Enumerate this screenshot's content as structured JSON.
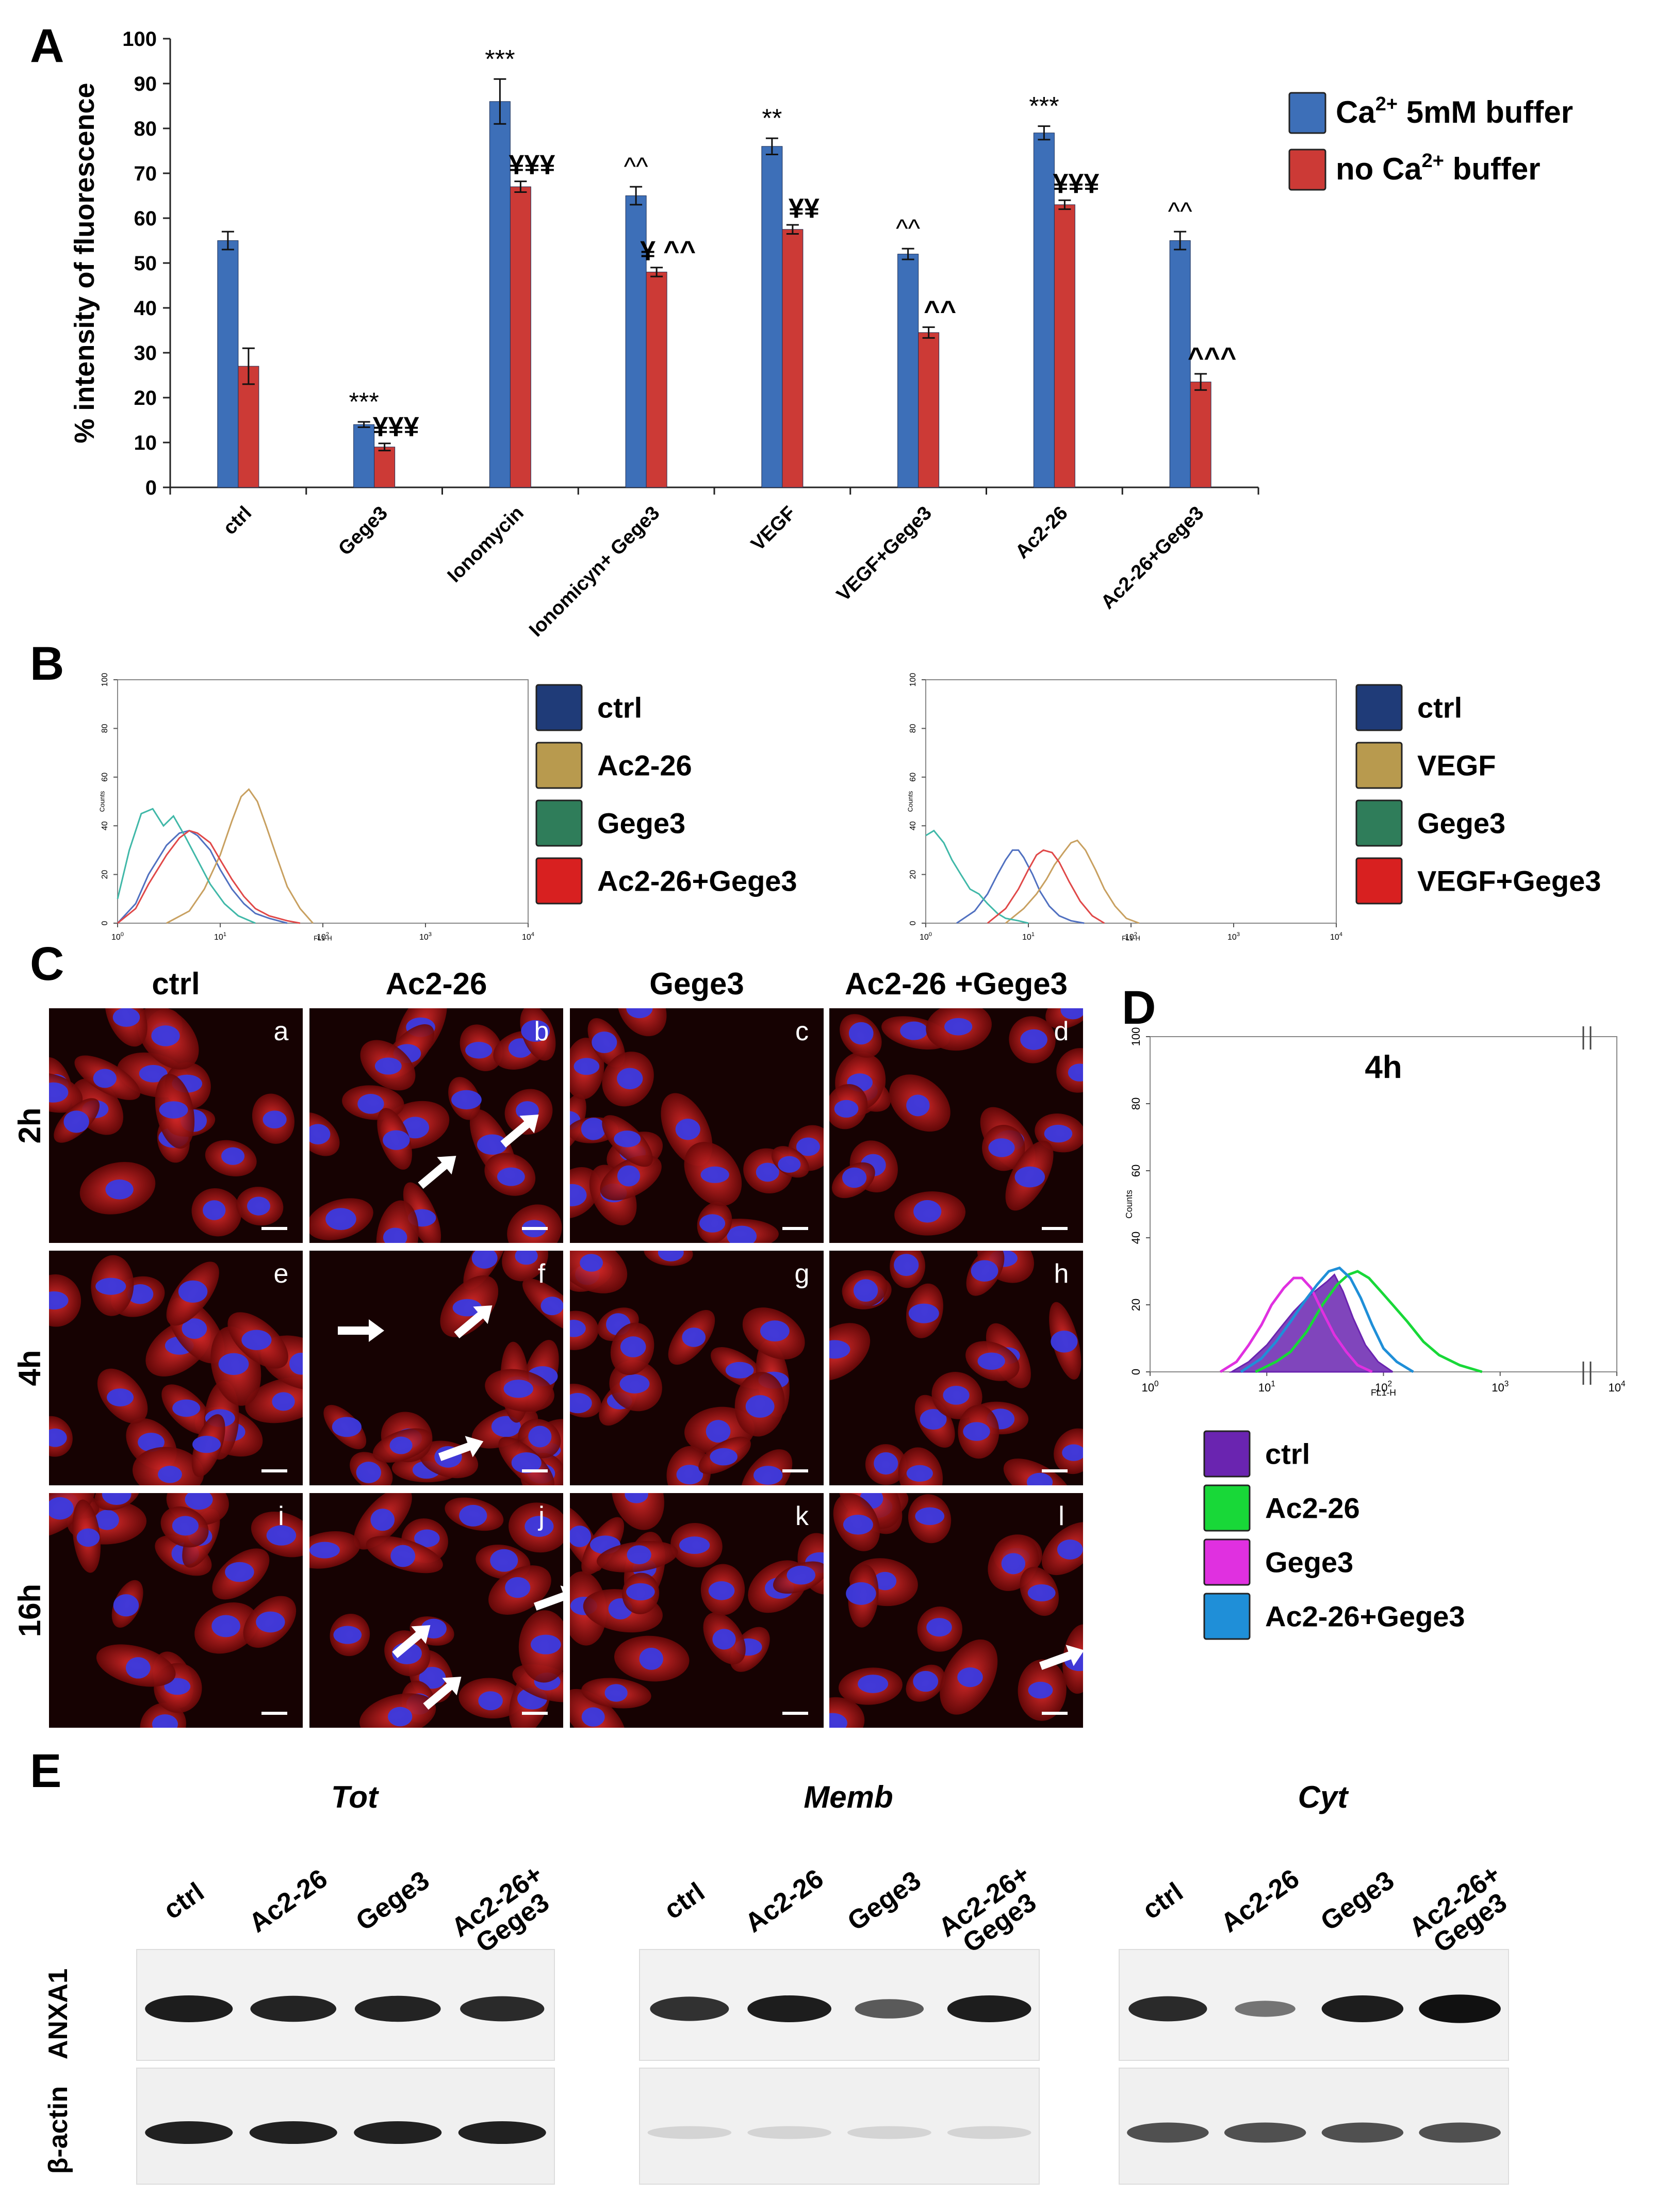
{
  "panel_letters": {
    "a": "A",
    "b": "B",
    "c": "C",
    "d": "D",
    "e": "E"
  },
  "colors": {
    "blue": "#3d6fb8",
    "red": "#cc3a36",
    "ctrl_dark": "#1f3b78",
    "gold": "#b89a4e",
    "green_legend": "#2f7d5a",
    "red_legend": "#d82020",
    "purple": "#6a24b0",
    "green": "#18d838",
    "magenta": "#e030e0",
    "cyan": "#1f8fd8",
    "hist_teal": "#40b8a8",
    "hist_tan": "#c8a060",
    "hist_blue": "#5070c0",
    "hist_red": "#e04848"
  },
  "chart_data": [
    {
      "id": "A",
      "type": "bar",
      "ylabel": "% intensity of fluorescence",
      "ylim": [
        0,
        100
      ],
      "yticks": [
        "0",
        "10",
        "20",
        "30",
        "40",
        "50",
        "60",
        "70",
        "80",
        "90",
        "100"
      ],
      "categories": [
        "ctrl",
        "Gege3",
        "Ionomycin",
        "Ionomicyn+ Gege3",
        "VEGF",
        "VEGF+Gege3",
        "Ac2-26",
        "Ac2-26+Gege3"
      ],
      "series": [
        {
          "name": "Ca2+ 5mM buffer",
          "legend_main": "Ca",
          "legend_sup": "2+",
          "legend_rest": " 5mM buffer",
          "values": [
            55,
            14,
            86,
            65,
            76,
            52,
            79,
            55
          ],
          "errors": [
            2,
            0.6,
            5,
            2,
            1.8,
            1.2,
            1.5,
            2
          ]
        },
        {
          "name": "no Ca2+ buffer",
          "legend_main": "no Ca",
          "legend_sup": "2+",
          "legend_rest": " buffer",
          "values": [
            27,
            9,
            67,
            48,
            57.5,
            34.5,
            63,
            23.5
          ],
          "errors": [
            4,
            0.8,
            1.2,
            1,
            1,
            1.2,
            1,
            1.8
          ]
        }
      ],
      "annotations_blue": [
        "",
        "***",
        "***",
        "^^",
        "**",
        "^^",
        "***",
        "^^"
      ],
      "annotations_red": [
        "",
        "¥¥¥",
        "¥¥¥",
        "¥ ^^",
        "¥¥",
        "^^",
        "¥¥¥",
        "^^^"
      ]
    },
    {
      "id": "B-left",
      "type": "line",
      "xlabel": "FL1-H",
      "ylabel": "Counts",
      "xscale": "log",
      "xlim": [
        1,
        10000
      ],
      "ylim": [
        0,
        100
      ],
      "xticks": [
        "10^0",
        "10^1",
        "10^2",
        "10^3",
        "10^4"
      ],
      "yticks": [
        "0",
        "20",
        "40",
        "60",
        "80",
        "100"
      ],
      "series": [
        {
          "name": "ctrl",
          "x": [
            1,
            1.5,
            2,
            3,
            4,
            5,
            6,
            8,
            10,
            13,
            17,
            22,
            30,
            45
          ],
          "y": [
            0,
            8,
            20,
            32,
            37,
            38,
            36,
            30,
            22,
            14,
            8,
            4,
            2,
            0
          ]
        },
        {
          "name": "Ac2-26",
          "x": [
            3,
            5,
            7,
            10,
            13,
            16,
            19,
            23,
            28,
            35,
            45,
            60,
            80
          ],
          "y": [
            0,
            5,
            14,
            28,
            42,
            52,
            55,
            50,
            40,
            28,
            15,
            6,
            0
          ]
        },
        {
          "name": "Gege3",
          "x": [
            1,
            1.3,
            1.7,
            2.2,
            2.8,
            3.5,
            4.5,
            6,
            8,
            11,
            15,
            22
          ],
          "y": [
            10,
            30,
            45,
            47,
            40,
            44,
            36,
            26,
            16,
            8,
            3,
            0
          ]
        },
        {
          "name": "Ac2-26+Gege3",
          "x": [
            1,
            1.5,
            2,
            3,
            4,
            5,
            6,
            8,
            10,
            13,
            17,
            22,
            30,
            45,
            60
          ],
          "y": [
            0,
            6,
            16,
            28,
            35,
            38,
            37,
            33,
            26,
            18,
            11,
            6,
            3,
            1,
            0
          ]
        }
      ],
      "legend": [
        "ctrl",
        "Ac2-26",
        "Gege3",
        "Ac2-26+Gege3"
      ]
    },
    {
      "id": "B-right",
      "type": "line",
      "xlabel": "FL1-H",
      "ylabel": "Counts",
      "xscale": "log",
      "xlim": [
        1,
        10000
      ],
      "ylim": [
        0,
        100
      ],
      "xticks": [
        "10^0",
        "10^1",
        "10^2",
        "10^3",
        "10^4"
      ],
      "yticks": [
        "0",
        "20",
        "40",
        "60",
        "80",
        "100"
      ],
      "series": [
        {
          "name": "ctrl",
          "x": [
            2,
            3,
            4,
            5,
            6,
            7,
            8,
            9,
            11,
            13,
            16,
            20,
            26,
            35
          ],
          "y": [
            0,
            5,
            12,
            20,
            26,
            30,
            30,
            27,
            20,
            13,
            7,
            3,
            1,
            0
          ]
        },
        {
          "name": "VEGF",
          "x": [
            6,
            9,
            12,
            15,
            18,
            22,
            26,
            30,
            36,
            45,
            55,
            70,
            90,
            120
          ],
          "y": [
            0,
            6,
            12,
            18,
            24,
            29,
            33,
            34,
            30,
            22,
            14,
            7,
            2,
            0
          ]
        },
        {
          "name": "Gege3",
          "x": [
            1,
            1.2,
            1.5,
            1.8,
            2.2,
            2.7,
            3.3,
            4,
            5,
            6,
            8,
            10
          ],
          "y": [
            36,
            38,
            33,
            26,
            20,
            14,
            12,
            8,
            4,
            2,
            1,
            0
          ]
        },
        {
          "name": "VEGF+Gege3",
          "x": [
            4,
            6,
            8,
            10,
            12,
            14,
            17,
            20,
            25,
            32,
            42,
            55
          ],
          "y": [
            0,
            6,
            14,
            22,
            28,
            30,
            29,
            25,
            17,
            9,
            3,
            0
          ]
        }
      ],
      "legend": [
        "ctrl",
        "VEGF",
        "Gege3",
        "VEGF+Gege3"
      ]
    },
    {
      "id": "D",
      "type": "line",
      "title": "4h",
      "xlabel": "FL1-H",
      "ylabel": "Counts",
      "xscale": "log",
      "xlim": [
        1,
        10000
      ],
      "ylim": [
        0,
        100
      ],
      "xticks": [
        "10^0",
        "10^1",
        "10^2",
        "10^3",
        "10^4"
      ],
      "yticks": [
        "0",
        "20",
        "40",
        "60",
        "80",
        "100"
      ],
      "series": [
        {
          "name": "ctrl",
          "x": [
            5,
            7,
            10,
            13,
            17,
            22,
            28,
            33,
            38,
            45,
            55,
            70,
            90,
            120
          ],
          "y": [
            0,
            3,
            8,
            13,
            18,
            22,
            25,
            27,
            29,
            24,
            16,
            8,
            3,
            0
          ]
        },
        {
          "name": "Ac2-26",
          "x": [
            8,
            12,
            16,
            22,
            30,
            40,
            50,
            60,
            75,
            95,
            120,
            160,
            220,
            300,
            450,
            700
          ],
          "y": [
            0,
            3,
            6,
            12,
            20,
            26,
            29,
            30,
            28,
            24,
            20,
            15,
            9,
            5,
            2,
            0
          ]
        },
        {
          "name": "Gege3",
          "x": [
            4,
            5.5,
            7,
            9,
            11,
            14,
            17,
            20,
            24,
            30,
            38,
            48,
            60,
            80
          ],
          "y": [
            0,
            3,
            8,
            14,
            20,
            25,
            28,
            28,
            25,
            18,
            11,
            6,
            2,
            0
          ]
        },
        {
          "name": "Ac2-26+Gege3",
          "x": [
            6,
            9,
            12,
            16,
            21,
            27,
            34,
            42,
            52,
            64,
            80,
            100,
            130,
            180
          ],
          "y": [
            0,
            4,
            9,
            15,
            21,
            26,
            30,
            31,
            28,
            22,
            14,
            7,
            3,
            0
          ]
        }
      ],
      "legend": [
        "ctrl",
        "Ac2-26",
        "Gege3",
        "Ac2-26+Gege3"
      ]
    }
  ],
  "panel_c": {
    "columns": [
      "ctrl",
      "Ac2-26",
      "Gege3",
      "Ac2-26 +Gege3"
    ],
    "rows": [
      "2h",
      "4h",
      "16h"
    ],
    "letters": [
      [
        "a",
        "b",
        "c",
        "d"
      ],
      [
        "e",
        "f",
        "g",
        "h"
      ],
      [
        "i",
        "j",
        "k",
        "l"
      ]
    ]
  },
  "panel_e": {
    "groups": [
      {
        "title": "Tot",
        "lanes": [
          "ctrl",
          "Ac2-26",
          "Gege3",
          "Ac2-26+\nGege3"
        ],
        "anxa1": [
          1,
          0.95,
          0.95,
          0.9
        ],
        "actin": [
          1,
          1,
          1,
          1
        ]
      },
      {
        "title": "Memb",
        "lanes": [
          "ctrl",
          "Ac2-26",
          "Gege3",
          "Ac2-26+\nGege3"
        ],
        "anxa1": [
          0.85,
          1,
          0.55,
          1
        ],
        "actin": [
          0.05,
          0.05,
          0.05,
          0.05
        ]
      },
      {
        "title": "Cyt",
        "lanes": [
          "ctrl",
          "Ac2-26",
          "Gege3",
          "Ac2-26+\nGege3"
        ],
        "anxa1": [
          0.9,
          0.35,
          1,
          1.1
        ],
        "actin": [
          0.75,
          0.75,
          0.75,
          0.75
        ]
      }
    ],
    "row_labels": [
      "ANXA1",
      "β-actin"
    ]
  }
}
